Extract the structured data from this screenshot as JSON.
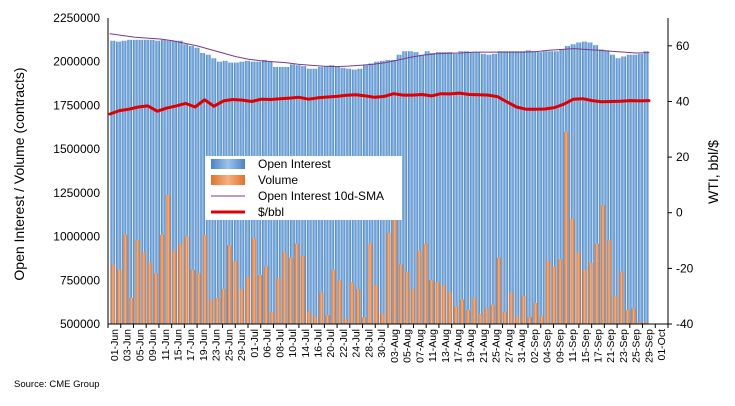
{
  "chart_data": {
    "type": "bar",
    "y_left": {
      "label": "Open Interest / Volume (contracts)",
      "range": [
        500000,
        2250000
      ],
      "ticks": [
        "2250000",
        "2000000",
        "1750000",
        "1500000",
        "1250000",
        "1000000",
        "750000",
        "500000"
      ],
      "tick_values": [
        2250000,
        2000000,
        1750000,
        1500000,
        1250000,
        1000000,
        750000,
        500000
      ]
    },
    "y_right": {
      "label": "WTI, bbl/$",
      "range": [
        -40,
        70
      ],
      "ticks": [
        "60",
        "40",
        "20",
        "0",
        "-20",
        "-40"
      ],
      "tick_values": [
        60,
        40,
        20,
        0,
        -20,
        -40
      ]
    },
    "x_tick_labels": [
      "01-Jun",
      "03-Jun",
      "05-Jun",
      "09-Jun",
      "11-Jun",
      "15-Jun",
      "17-Jun",
      "19-Jun",
      "23-Jun",
      "25-Jun",
      "29-Jun",
      "01-Jul",
      "06-Jul",
      "08-Jul",
      "10-Jul",
      "14-Jul",
      "16-Jul",
      "20-Jul",
      "22-Jul",
      "24-Jul",
      "28-Jul",
      "30-Jul",
      "03-Aug",
      "05-Aug",
      "07-Aug",
      "11-Aug",
      "13-Aug",
      "17-Aug",
      "19-Aug",
      "21-Aug",
      "25-Aug",
      "27-Aug",
      "31-Aug",
      "02-Sep",
      "04-Sep",
      "09-Sep",
      "11-Sep",
      "15-Sep",
      "17-Sep",
      "21-Sep",
      "23-Sep",
      "25-Sep",
      "29-Sep",
      "01-Oct"
    ],
    "legend": {
      "placement": "center-left",
      "entries": [
        "Open Interest",
        "Volume",
        "Open Interest 10d-SMA",
        "$/bbl"
      ]
    },
    "series": [
      {
        "name": "Open Interest",
        "type": "bar",
        "axis": "left",
        "values": [
          2120000,
          2115000,
          2120000,
          2125000,
          2125000,
          2125000,
          2125000,
          2125000,
          2120000,
          2125000,
          2120000,
          2120000,
          2120000,
          2100000,
          2090000,
          2080000,
          2050000,
          2040000,
          2020000,
          2000000,
          2005000,
          1995000,
          1995000,
          2000000,
          2005000,
          2000000,
          2000000,
          2010000,
          2000000,
          1970000,
          1970000,
          1970000,
          1985000,
          1980000,
          1975000,
          1960000,
          1960000,
          1970000,
          1975000,
          1980000,
          1970000,
          1965000,
          1960000,
          1955000,
          1960000,
          1980000,
          1990000,
          2000000,
          2005000,
          2010000,
          2010000,
          2040000,
          2060000,
          2060000,
          2055000,
          2040000,
          2060000,
          2050000,
          2055000,
          2055000,
          2055000,
          2045000,
          2060000,
          2060000,
          2055000,
          2055000,
          2045000,
          2040000,
          2045000,
          2060000,
          2060000,
          2060000,
          2060000,
          2060000,
          2065000,
          2060000,
          2055000,
          2060000,
          2060000,
          2060000,
          2070000,
          2090000,
          2100000,
          2110000,
          2115000,
          2110000,
          2095000,
          2070000,
          2065000,
          2040000,
          2020000,
          2030000,
          2040000,
          2040000,
          2045000,
          2060000
        ]
      },
      {
        "name": "Volume",
        "type": "bar",
        "axis": "left",
        "values": [
          840000,
          810000,
          1010000,
          650000,
          980000,
          910000,
          850000,
          790000,
          1010000,
          1240000,
          920000,
          960000,
          1000000,
          810000,
          790000,
          1010000,
          640000,
          650000,
          700000,
          950000,
          860000,
          700000,
          770000,
          990000,
          780000,
          830000,
          570000,
          760000,
          910000,
          880000,
          960000,
          890000,
          570000,
          540000,
          680000,
          550000,
          810000,
          750000,
          530000,
          740000,
          700000,
          540000,
          960000,
          720000,
          560000,
          1020000,
          1220000,
          840000,
          800000,
          700000,
          920000,
          960000,
          750000,
          740000,
          720000,
          680000,
          600000,
          640000,
          580000,
          650000,
          560000,
          590000,
          610000,
          880000,
          570000,
          680000,
          540000,
          660000,
          540000,
          620000,
          550000,
          860000,
          830000,
          870000,
          1600000,
          1100000,
          910000,
          810000,
          850000,
          960000,
          1180000,
          980000,
          660000,
          800000,
          580000,
          590000,
          510000,
          510000
        ]
      },
      {
        "name": "Open Interest 10d-SMA",
        "type": "line",
        "axis": "left",
        "values": [
          2160000,
          2150000,
          2140000,
          2135000,
          2130000,
          2120000,
          2105000,
          2090000,
          2070000,
          2050000,
          2030000,
          2015000,
          2005000,
          2000000,
          1995000,
          1985000,
          1980000,
          1975000,
          1972000,
          1975000,
          1980000,
          1985000,
          1995000,
          2010000,
          2025000,
          2038000,
          2045000,
          2048000,
          2050000,
          2055000,
          2055000,
          2055000,
          2055000,
          2055000,
          2058000,
          2065000,
          2070000,
          2075000,
          2070000,
          2065000,
          2060000,
          2055000,
          2050000,
          2052000
        ]
      },
      {
        "name": "$/bbl",
        "type": "line",
        "axis": "right",
        "values": [
          35.5,
          36.7,
          37.2,
          38.0,
          38.4,
          36.5,
          37.6,
          38.4,
          39.3,
          38.0,
          40.6,
          38.3,
          40.2,
          40.7,
          40.5,
          40.0,
          40.8,
          40.7,
          41.0,
          41.2,
          41.5,
          40.8,
          41.3,
          41.6,
          41.8,
          42.2,
          42.4,
          42.0,
          41.5,
          41.8,
          42.8,
          42.3,
          42.3,
          42.5,
          42.0,
          42.8,
          42.7,
          43.0,
          42.5,
          42.4,
          42.3,
          41.7,
          39.8,
          38.0,
          37.2,
          37.2,
          37.3,
          37.8,
          39.0,
          40.8,
          41.0,
          40.3,
          39.9,
          40.0,
          40.1,
          40.3,
          40.2,
          40.3
        ]
      }
    ],
    "colors": {
      "open_interest": "#5b9bd5",
      "volume": "#ed7d31",
      "sma": "#7a3b8c",
      "price": "#e00000"
    }
  },
  "footer": {
    "source": "Source: CME Group"
  }
}
